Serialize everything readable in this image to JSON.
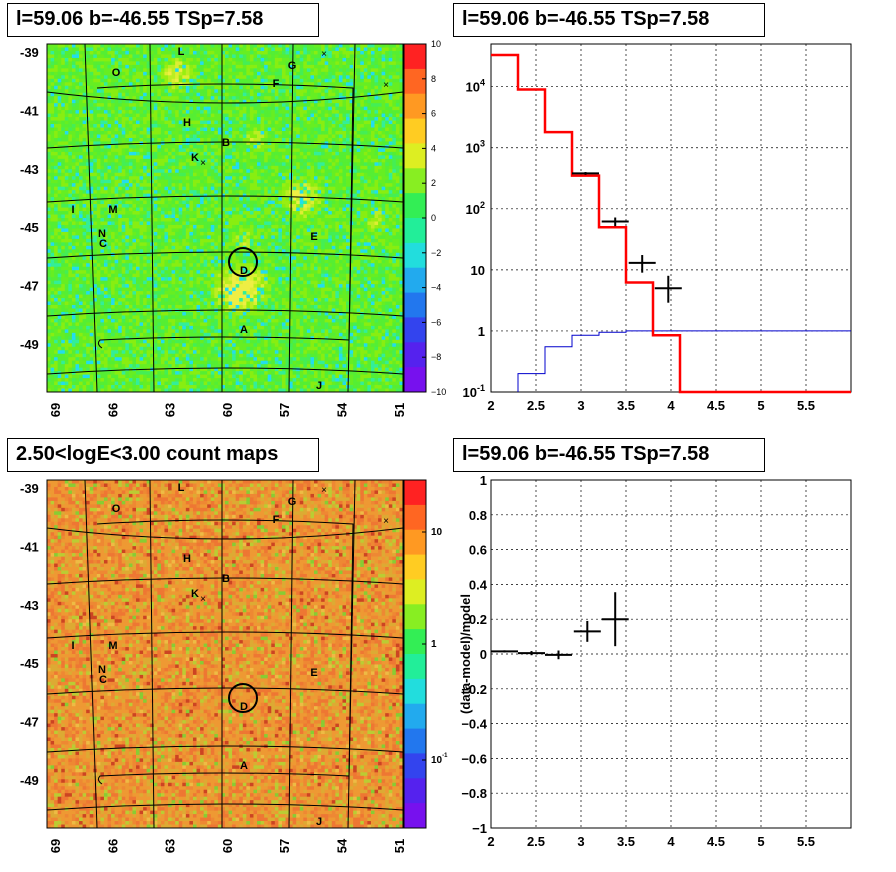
{
  "panels": {
    "top_left_title": "l=59.06 b=-46.55 TSp=7.58",
    "top_right_title": "l=59.06 b=-46.55 TSp=7.58",
    "bottom_left_title": "2.50<logE<3.00 count maps",
    "bottom_right_title": "l=59.06 b=-46.55 TSp=7.58"
  },
  "colors": {
    "model_line": "#ff0000",
    "background_line": "#0000cc",
    "data_points": "#000000"
  },
  "chart_data": [
    {
      "type": "heatmap",
      "name": "TS map",
      "title": "l=59.06 b=-46.55 TSp=7.58",
      "x_ticks": [
        "69",
        "66",
        "63",
        "60",
        "57",
        "54",
        "51"
      ],
      "y_ticks": [
        "-39",
        "-41",
        "-43",
        "-45",
        "-47",
        "-49"
      ],
      "colorbar_ticks": [
        "10",
        "8",
        "6",
        "4",
        "2",
        "0",
        "−2",
        "−4",
        "−6",
        "−8",
        "−10"
      ],
      "colorbar_range": [
        -10,
        10
      ],
      "source_labels": [
        "L",
        "O",
        "G",
        "F",
        "H",
        "B",
        "K",
        "I",
        "M",
        "N",
        "C",
        "E",
        "D",
        "A",
        "J"
      ]
    },
    {
      "type": "line",
      "name": "spectrum counts",
      "title": "l=59.06 b=-46.55 TSp=7.58",
      "xlim": [
        2,
        6
      ],
      "ylim": [
        0.1,
        50000
      ],
      "y_scale": "log",
      "x_ticks": [
        "2",
        "2.5",
        "3",
        "3.5",
        "4",
        "4.5",
        "5",
        "5.5"
      ],
      "y_tick_labels": [
        "10^-1",
        "1",
        "10",
        "10^2",
        "10^3",
        "10^4"
      ],
      "model_steps": {
        "edges": [
          2.0,
          2.3,
          2.6,
          2.9,
          3.2,
          3.5,
          3.8,
          4.1,
          4.4,
          6.0
        ],
        "values": [
          33000,
          9000,
          1800,
          350,
          50,
          6.2,
          0.85,
          0.1,
          0.1
        ]
      },
      "background_steps": {
        "edges": [
          2.3,
          2.6,
          2.9,
          3.2,
          3.5,
          6.0
        ],
        "values": [
          0.2,
          0.55,
          0.85,
          0.95,
          1.0
        ]
      },
      "data_points": [
        {
          "x": 3.05,
          "y": 380,
          "xerr": 0.15,
          "ylo": 360,
          "yhi": 400
        },
        {
          "x": 3.38,
          "y": 62,
          "xerr": 0.15,
          "ylo": 52,
          "yhi": 72
        },
        {
          "x": 3.68,
          "y": 13,
          "xerr": 0.15,
          "ylo": 9,
          "yhi": 17.5
        },
        {
          "x": 3.97,
          "y": 5,
          "xerr": 0.15,
          "ylo": 2.9,
          "yhi": 8
        }
      ]
    },
    {
      "type": "heatmap",
      "name": "count map",
      "title": "2.50<logE<3.00 count maps",
      "x_ticks": [
        "69",
        "66",
        "63",
        "60",
        "57",
        "54",
        "51"
      ],
      "y_ticks": [
        "-39",
        "-41",
        "-43",
        "-45",
        "-47",
        "-49"
      ],
      "colorbar_ticks": [
        "10",
        "1",
        "10^-1"
      ],
      "colorbar_scale": "log",
      "source_labels": [
        "L",
        "O",
        "G",
        "F",
        "H",
        "B",
        "K",
        "I",
        "M",
        "N",
        "C",
        "E",
        "D",
        "A",
        "J"
      ]
    },
    {
      "type": "scatter",
      "name": "residuals",
      "title": "l=59.06 b=-46.55 TSp=7.58",
      "ylabel": "(data-model)/model",
      "xlim": [
        2,
        6
      ],
      "ylim": [
        -1,
        1
      ],
      "x_ticks": [
        "2",
        "2.5",
        "3",
        "3.5",
        "4",
        "4.5",
        "5",
        "5.5"
      ],
      "y_ticks": [
        "1",
        "0.8",
        "0.6",
        "0.4",
        "0.2",
        "0",
        "−0.2",
        "−0.4",
        "−0.6",
        "−0.8",
        "−1"
      ],
      "points": [
        {
          "x": 2.15,
          "y": 0.015,
          "xerr": 0.15,
          "yerr": 0.006
        },
        {
          "x": 2.45,
          "y": 0.005,
          "xerr": 0.15,
          "yerr": 0.012
        },
        {
          "x": 2.75,
          "y": -0.005,
          "xerr": 0.15,
          "yerr": 0.025
        },
        {
          "x": 3.07,
          "y": 0.13,
          "xerr": 0.15,
          "yerr": 0.06
        },
        {
          "x": 3.38,
          "y": 0.2,
          "xerr": 0.15,
          "yerr": 0.155
        }
      ]
    }
  ]
}
